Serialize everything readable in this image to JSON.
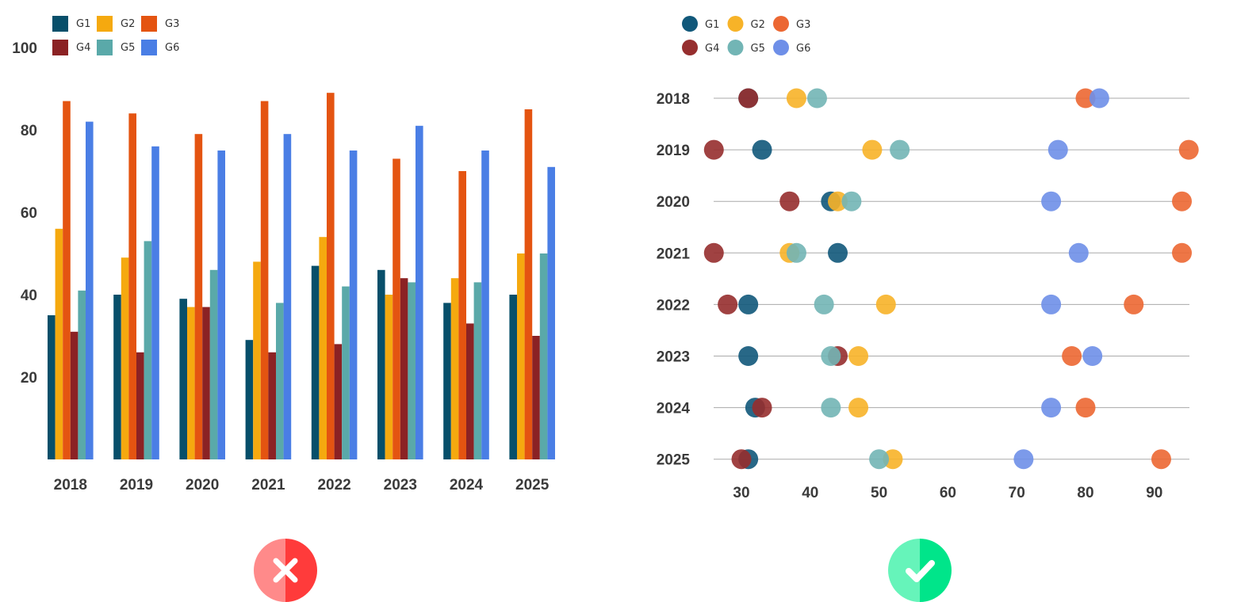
{
  "chart_data": [
    {
      "type": "bar",
      "categories": [
        "2018",
        "2019",
        "2020",
        "2021",
        "2022",
        "2023",
        "2024",
        "2025"
      ],
      "series": [
        {
          "name": "G1",
          "color": "#074F6A",
          "values": [
            35,
            40,
            39,
            29,
            47,
            46,
            38,
            40
          ]
        },
        {
          "name": "G2",
          "color": "#F5A90F",
          "values": [
            56,
            49,
            37,
            48,
            54,
            40,
            44,
            50
          ]
        },
        {
          "name": "G3",
          "color": "#E45411",
          "values": [
            87,
            84,
            79,
            87,
            89,
            73,
            70,
            85
          ]
        },
        {
          "name": "G4",
          "color": "#8B2224",
          "values": [
            31,
            26,
            37,
            26,
            28,
            44,
            33,
            30
          ]
        },
        {
          "name": "G5",
          "color": "#5AA9A9",
          "values": [
            41,
            53,
            46,
            38,
            42,
            43,
            43,
            50
          ]
        },
        {
          "name": "G6",
          "color": "#4A7EE5",
          "values": [
            82,
            76,
            75,
            79,
            75,
            81,
            75,
            71
          ]
        }
      ],
      "yticks": [
        "20",
        "40",
        "60",
        "80",
        "100"
      ],
      "ylim": [
        0,
        100
      ],
      "grid": false,
      "legend": "top-left"
    },
    {
      "type": "scatter",
      "categories": [
        "2018",
        "2019",
        "2020",
        "2021",
        "2022",
        "2023",
        "2024",
        "2025"
      ],
      "series": [
        {
          "name": "G1",
          "color": "#11587A",
          "values": [
            31,
            33,
            43,
            44,
            31,
            31,
            32,
            31
          ]
        },
        {
          "name": "G2",
          "color": "#F7B328",
          "values": [
            38,
            49,
            44,
            37,
            51,
            47,
            47,
            52
          ]
        },
        {
          "name": "G3",
          "color": "#EC6732",
          "values": [
            80,
            95,
            94,
            94,
            87,
            78,
            80,
            91
          ]
        },
        {
          "name": "G4",
          "color": "#962E2E",
          "values": [
            31,
            26,
            37,
            26,
            28,
            44,
            33,
            30
          ]
        },
        {
          "name": "G5",
          "color": "#72B5B5",
          "values": [
            41,
            53,
            46,
            38,
            42,
            43,
            43,
            50
          ]
        },
        {
          "name": "G6",
          "color": "#6E8FE8",
          "values": [
            82,
            76,
            75,
            79,
            75,
            81,
            75,
            71
          ]
        }
      ],
      "xticks": [
        "30",
        "40",
        "50",
        "60",
        "70",
        "80",
        "90"
      ],
      "xlim": [
        26,
        95
      ],
      "grid": "horizontal-per-category",
      "legend": "top-left"
    }
  ],
  "badges": {
    "wrong": {
      "icon": "x-icon",
      "color_light": "#FF8A8A",
      "color_dark": "#FF3B3B"
    },
    "right": {
      "icon": "check-icon",
      "color_light": "#66F4BA",
      "color_dark": "#00E58A"
    }
  }
}
